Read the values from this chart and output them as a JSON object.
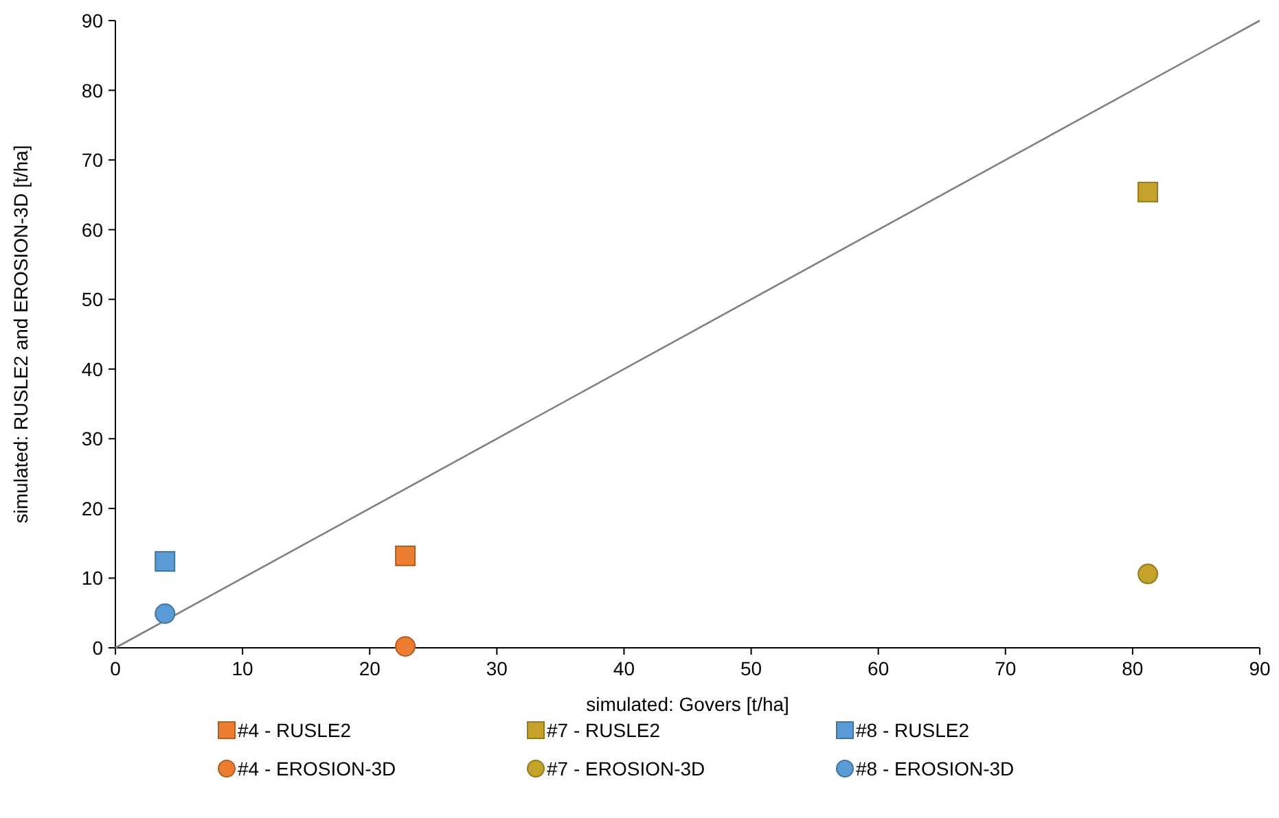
{
  "chart_data": {
    "type": "scatter",
    "xlabel": "simulated: Govers [t/ha]",
    "ylabel": "simulated: RUSLE2 and EROSION-3D [t/ha]",
    "xlim": [
      0,
      90
    ],
    "xticks": [
      0,
      10,
      20,
      30,
      40,
      50,
      60,
      70,
      80,
      90
    ],
    "ylim": [
      0,
      90
    ],
    "yticks": [
      0,
      10,
      20,
      30,
      40,
      50,
      60,
      70,
      80,
      90
    ],
    "grid": false,
    "legend": "bottom",
    "series": [
      {
        "name": "#4 - RUSLE2",
        "color": "#ed7d31",
        "marker": "square",
        "x": [
          22.8
        ],
        "values": [
          13.2
        ]
      },
      {
        "name": "#7 - RUSLE2",
        "color": "#c5a22a",
        "marker": "square",
        "x": [
          81.2
        ],
        "values": [
          65.4
        ]
      },
      {
        "name": "#8 - RUSLE2",
        "color": "#5b9bd5",
        "marker": "square",
        "x": [
          3.9
        ],
        "values": [
          12.4
        ]
      },
      {
        "name": "#4 - EROSION-3D",
        "color": "#ed7d31",
        "marker": "circle",
        "x": [
          22.8
        ],
        "values": [
          0.2
        ]
      },
      {
        "name": "#7 - EROSION-3D",
        "color": "#c5a22a",
        "marker": "circle",
        "x": [
          81.2
        ],
        "values": [
          10.6
        ]
      },
      {
        "name": "#8 - EROSION-3D",
        "color": "#5b9bd5",
        "marker": "circle",
        "x": [
          3.9
        ],
        "values": [
          4.9
        ]
      },
      {
        "type": "line",
        "color": "#808080",
        "marker": "none",
        "x": [
          0,
          90
        ],
        "values": [
          0,
          90
        ]
      }
    ]
  }
}
